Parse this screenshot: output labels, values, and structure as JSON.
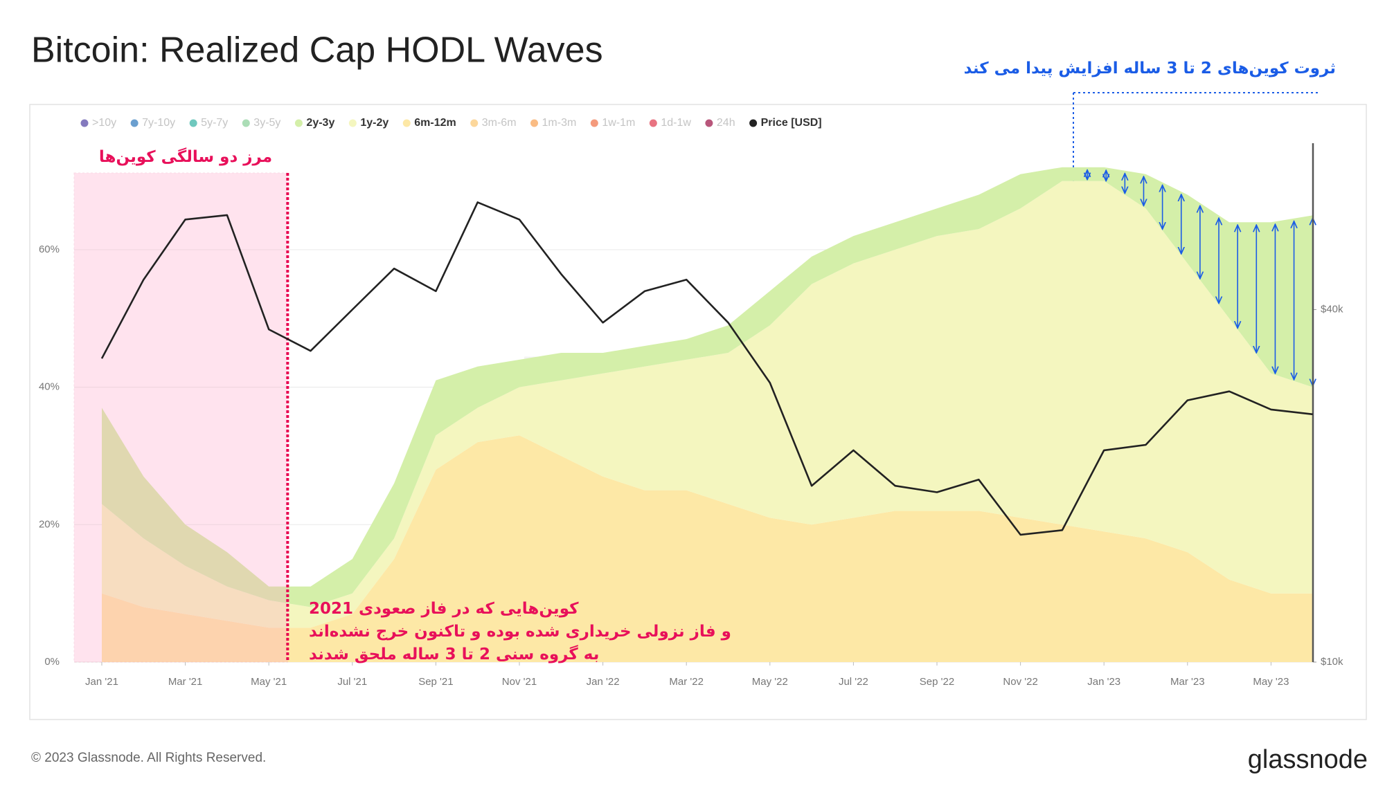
{
  "chart_data": {
    "type": "area",
    "title": "Bitcoin: Realized Cap HODL Waves",
    "watermark": "glassnode",
    "footer": "© 2023 Glassnode. All Rights Reserved.",
    "logo": "glassnode",
    "categories": [
      "Jan '21",
      null,
      "Mar '21",
      null,
      "May '21",
      null,
      "Jul '21",
      null,
      "Sep '21",
      null,
      "Nov '21",
      null,
      "Jan '22",
      null,
      "Mar '22",
      null,
      "May '22",
      null,
      "Jul '22",
      null,
      "Sep '22",
      null,
      "Nov '22",
      null,
      "Jan '23",
      null,
      "Mar '23",
      null,
      "May '23",
      null
    ],
    "ylim": [
      0,
      76
    ],
    "yticks": [
      {
        "value": 0,
        "label": "0%"
      },
      {
        "value": 20,
        "label": "20%"
      },
      {
        "value": 40,
        "label": "40%"
      },
      {
        "value": 60,
        "label": "60%"
      }
    ],
    "y2lim": [
      10000,
      78000
    ],
    "y2scale": "log",
    "y2ticks": [
      {
        "value": 10000,
        "label": "$10k"
      },
      {
        "value": 40000,
        "label": "$40k"
      }
    ],
    "grid": true,
    "legend": "top-left",
    "series": [
      {
        "name": ">10y",
        "color": "#5b4ea8",
        "visible": false
      },
      {
        "name": "7y-10y",
        "color": "#3a7fbf",
        "visible": false
      },
      {
        "name": "5y-7y",
        "color": "#3fb6a8",
        "visible": false
      },
      {
        "name": "3y-5y",
        "color": "#8fd19e",
        "visible": false
      },
      {
        "name": "2y-3y",
        "color": "#d4efa9",
        "visible": true,
        "values": [
          14,
          9,
          6,
          5,
          2,
          3,
          5,
          8,
          8,
          6,
          4,
          4,
          3,
          3,
          3,
          4,
          5,
          4,
          4,
          4,
          4,
          5,
          5,
          2,
          2,
          5,
          10,
          14,
          22,
          25
        ]
      },
      {
        "name": "1y-2y",
        "color": "#f4f6bf",
        "visible": true,
        "values": [
          13,
          10,
          7,
          5,
          4,
          3,
          3,
          3,
          5,
          5,
          7,
          11,
          15,
          18,
          19,
          22,
          28,
          35,
          37,
          38,
          40,
          41,
          45,
          50,
          51,
          48,
          42,
          38,
          32,
          30
        ]
      },
      {
        "name": "6m-12m",
        "color": "#fde8a6",
        "visible": true,
        "values": [
          10,
          8,
          7,
          6,
          5,
          5,
          7,
          15,
          28,
          32,
          33,
          30,
          27,
          25,
          25,
          23,
          21,
          20,
          21,
          22,
          22,
          22,
          21,
          20,
          19,
          18,
          16,
          12,
          10,
          10
        ]
      },
      {
        "name": "3m-6m",
        "color": "#fbc97a",
        "visible": false
      },
      {
        "name": "1m-3m",
        "color": "#f8a55b",
        "visible": false
      },
      {
        "name": "1w-1m",
        "color": "#f07850",
        "visible": false
      },
      {
        "name": "1d-1w",
        "color": "#e04457",
        "visible": false
      },
      {
        "name": "24h",
        "color": "#a01d4f",
        "visible": false
      },
      {
        "name": "Price [USD]",
        "color": "#222222",
        "visible": true,
        "axis": "y2",
        "values": [
          33000,
          45000,
          57000,
          58000,
          37000,
          34000,
          40000,
          47000,
          43000,
          61000,
          57000,
          46000,
          38000,
          43000,
          45000,
          38000,
          30000,
          20000,
          23000,
          20000,
          19500,
          20500,
          16500,
          16800,
          23000,
          23500,
          28000,
          29000,
          27000,
          26500
        ]
      }
    ],
    "annotations": {
      "boundary_label": "مرز دو سالگی کوین‌ها",
      "increase_label": "ثروت کوین‌های 2 تا 3 ساله افزایش پیدا می کند",
      "joined_note": [
        "کوین‌هایی که در فاز صعودی 2021",
        "و فاز نزولی خریداری شده بوده و تاکنون خرج نشده‌اند",
        "به گروه سنی 2 تا 3 ساله ملحق شدند"
      ]
    }
  }
}
